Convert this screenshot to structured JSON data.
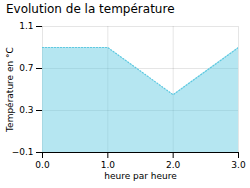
{
  "chart_data": {
    "type": "area",
    "title": "Evolution de la température",
    "xlabel": "heure par heure",
    "ylabel": "Température en °C",
    "x": [
      0,
      1,
      2,
      3
    ],
    "values": [
      0.9,
      0.9,
      0.45,
      0.9
    ],
    "xlim": [
      0,
      3
    ],
    "ylim": [
      -0.1,
      1.1
    ],
    "xticks": [
      0,
      1,
      2,
      3
    ],
    "yticks": [
      -0.1,
      0.3,
      0.7,
      1.1
    ],
    "color": "#5bc8e0",
    "line_style": "dotted",
    "grid": true
  }
}
